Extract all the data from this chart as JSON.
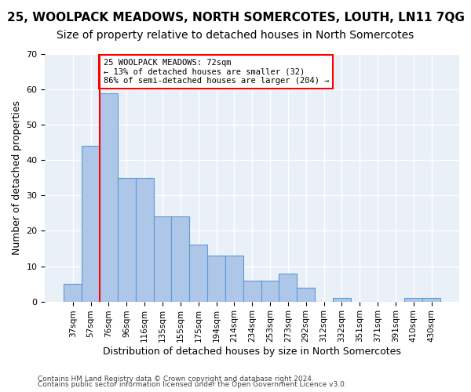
{
  "title": "25, WOOLPACK MEADOWS, NORTH SOMERCOTES, LOUTH, LN11 7QG",
  "subtitle": "Size of property relative to detached houses in North Somercotes",
  "xlabel": "Distribution of detached houses by size in North Somercotes",
  "ylabel": "Number of detached properties",
  "categories": [
    "37sqm",
    "57sqm",
    "76sqm",
    "96sqm",
    "116sqm",
    "135sqm",
    "155sqm",
    "175sqm",
    "194sqm",
    "214sqm",
    "234sqm",
    "253sqm",
    "273sqm",
    "292sqm",
    "312sqm",
    "332sqm",
    "351sqm",
    "371sqm",
    "391sqm",
    "410sqm",
    "430sqm"
  ],
  "values": [
    5,
    44,
    59,
    35,
    35,
    24,
    24,
    16,
    13,
    13,
    6,
    6,
    8,
    4,
    0,
    1,
    0,
    0,
    0,
    1,
    1
  ],
  "bar_color": "#aec6e8",
  "bar_edge_color": "#5b9bd5",
  "property_line_x": 1.5,
  "property_sqm": "72sqm",
  "annotation_text": "25 WOOLPACK MEADOWS: 72sqm\n← 13% of detached houses are smaller (32)\n86% of semi-detached houses are larger (204) →",
  "annotation_box_color": "white",
  "annotation_box_edge_color": "red",
  "vline_color": "red",
  "ylim": [
    0,
    70
  ],
  "yticks": [
    0,
    10,
    20,
    30,
    40,
    50,
    60,
    70
  ],
  "background_color": "#eaf0f8",
  "grid_color": "white",
  "footer_line1": "Contains HM Land Registry data © Crown copyright and database right 2024.",
  "footer_line2": "Contains public sector information licensed under the Open Government Licence v3.0.",
  "title_fontsize": 11,
  "subtitle_fontsize": 10,
  "xlabel_fontsize": 9,
  "ylabel_fontsize": 9
}
